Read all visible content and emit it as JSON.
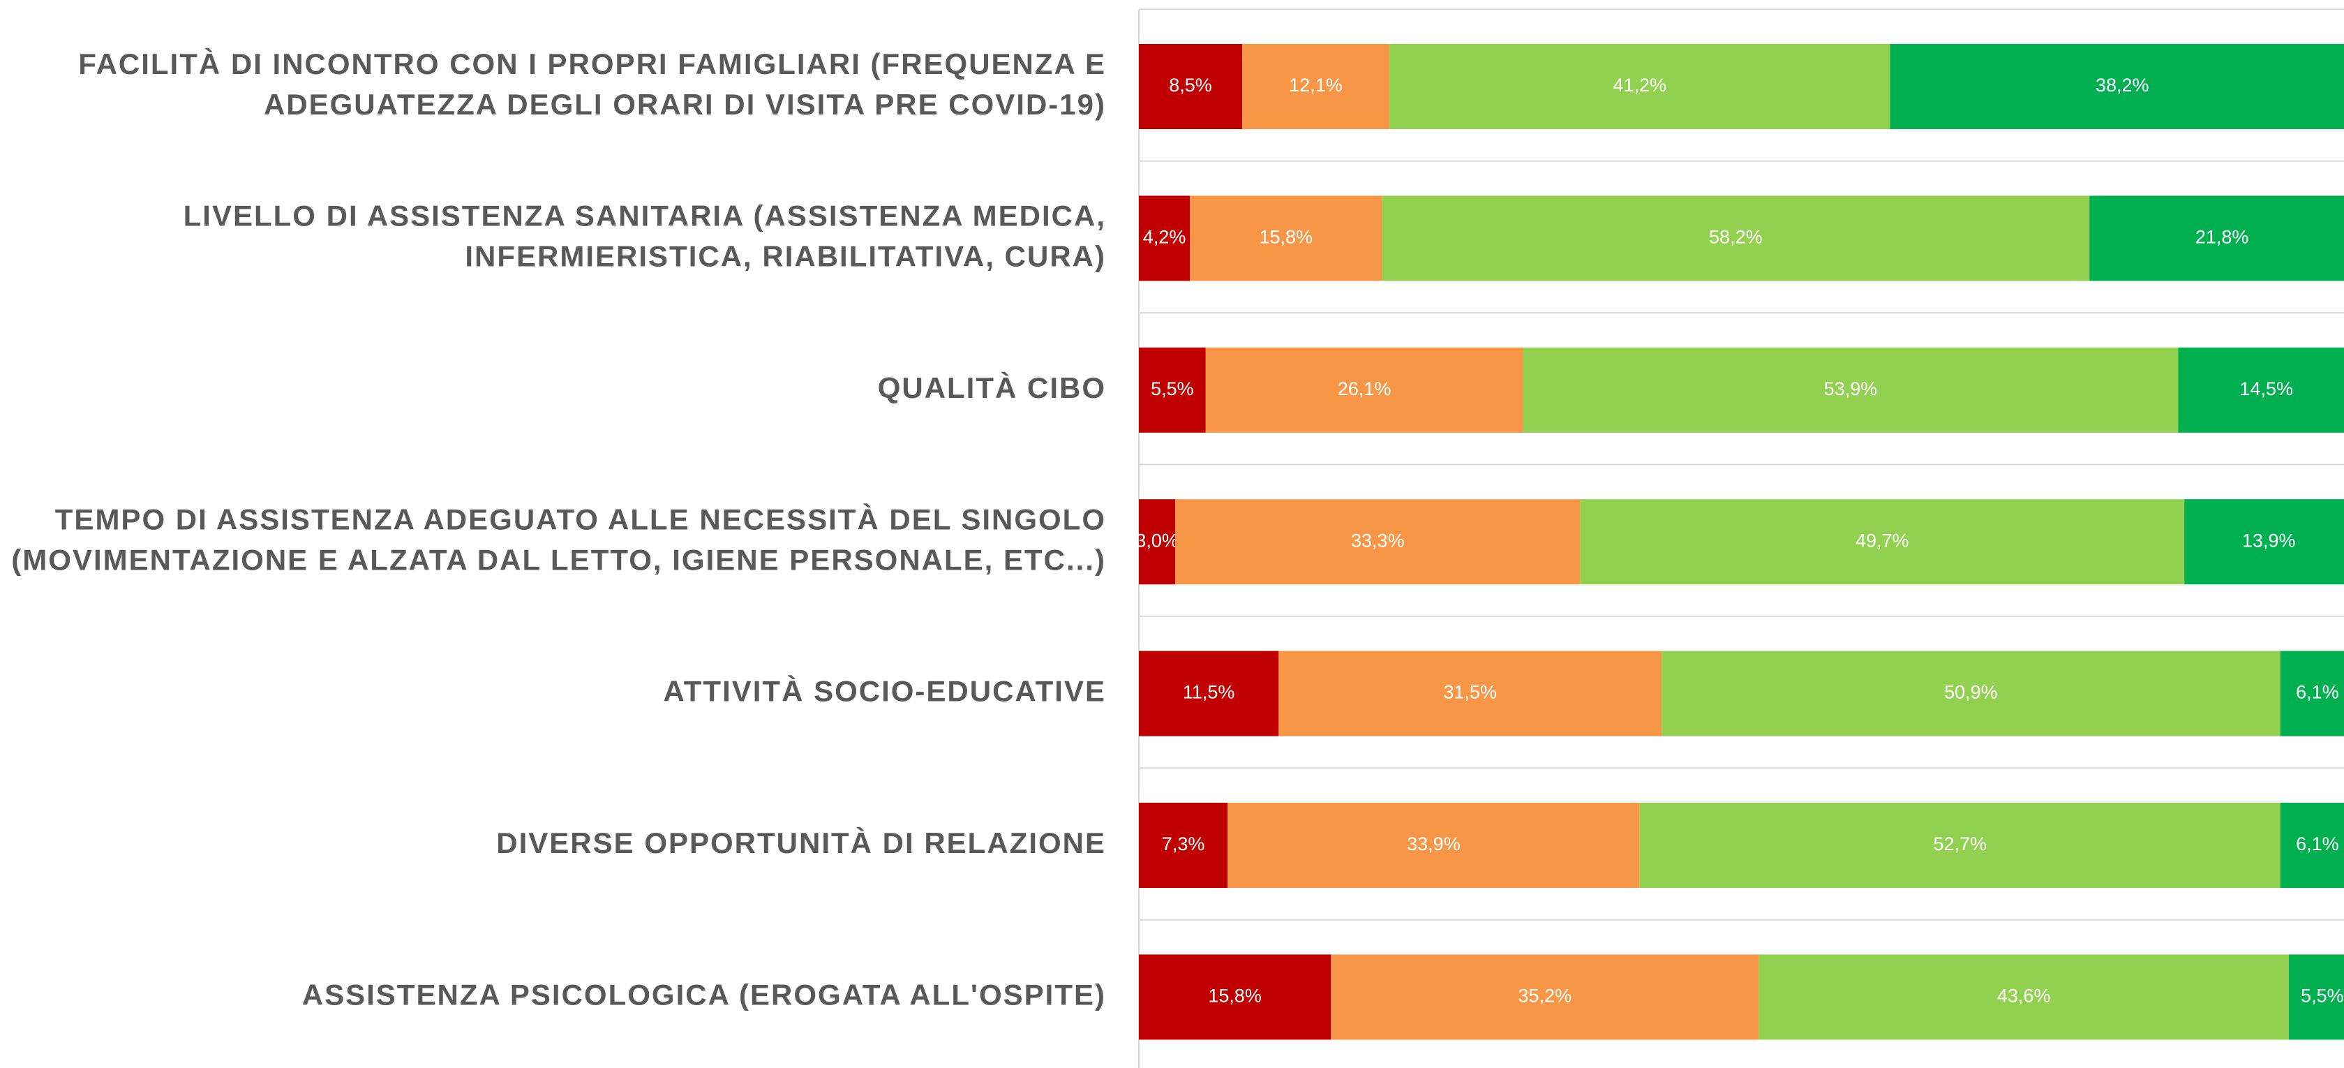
{
  "chart_data": {
    "type": "stacked_barh",
    "categories": [
      [
        "FACILITÀ DI INCONTRO CON I PROPRI FAMIGLIARI (FREQUENZA E",
        "ADEGUATEZZA DEGLI ORARI DI VISITA PRE COVID-19)"
      ],
      [
        "LIVELLO DI ASSISTENZA SANITARIA (ASSISTENZA MEDICA,",
        "INFERMIERISTICA, RIABILITATIVA, CURA)"
      ],
      [
        "QUALITÀ CIBO"
      ],
      [
        "TEMPO DI ASSISTENZA ADEGUATO ALLE NECESSITÀ DEL SINGOLO",
        "(MOVIMENTAZIONE E ALZATA DAL LETTO, IGIENE PERSONALE, ETC...)"
      ],
      [
        "ATTIVITÀ SOCIO-EDUCATIVE"
      ],
      [
        "DIVERSE OPPORTUNITÀ DI RELAZIONE"
      ],
      [
        "ASSISTENZA PSICOLOGICA (EROGATA ALL'OSPITE)"
      ]
    ],
    "series": [
      {
        "color": "#c00000",
        "values": [
          8.5,
          4.2,
          5.5,
          3.0,
          11.5,
          7.3,
          15.8
        ],
        "value_labels": [
          "8,5%",
          "4,2%",
          "5,5%",
          "3,0%",
          "11,5%",
          "7,3%",
          "15,8%"
        ]
      },
      {
        "color": "#f79646",
        "values": [
          12.1,
          15.8,
          26.1,
          33.3,
          31.5,
          33.9,
          35.2
        ],
        "value_labels": [
          "12,1%",
          "15,8%",
          "26,1%",
          "33,3%",
          "31,5%",
          "33,9%",
          "35,2%"
        ]
      },
      {
        "color": "#92d050",
        "values": [
          41.2,
          58.2,
          53.9,
          49.7,
          50.9,
          52.7,
          43.6
        ],
        "value_labels": [
          "41,2%",
          "58,2%",
          "53,9%",
          "49,7%",
          "50,9%",
          "52,7%",
          "43,6%"
        ]
      },
      {
        "color": "#00b050",
        "values": [
          38.2,
          21.8,
          14.5,
          13.9,
          6.1,
          6.1,
          5.5
        ],
        "value_labels": [
          "38,2%",
          "21,8%",
          "14,5%",
          "13,9%",
          "6,1%",
          "6,1%",
          "5,5%"
        ]
      }
    ],
    "xlim": [
      0,
      100
    ]
  }
}
